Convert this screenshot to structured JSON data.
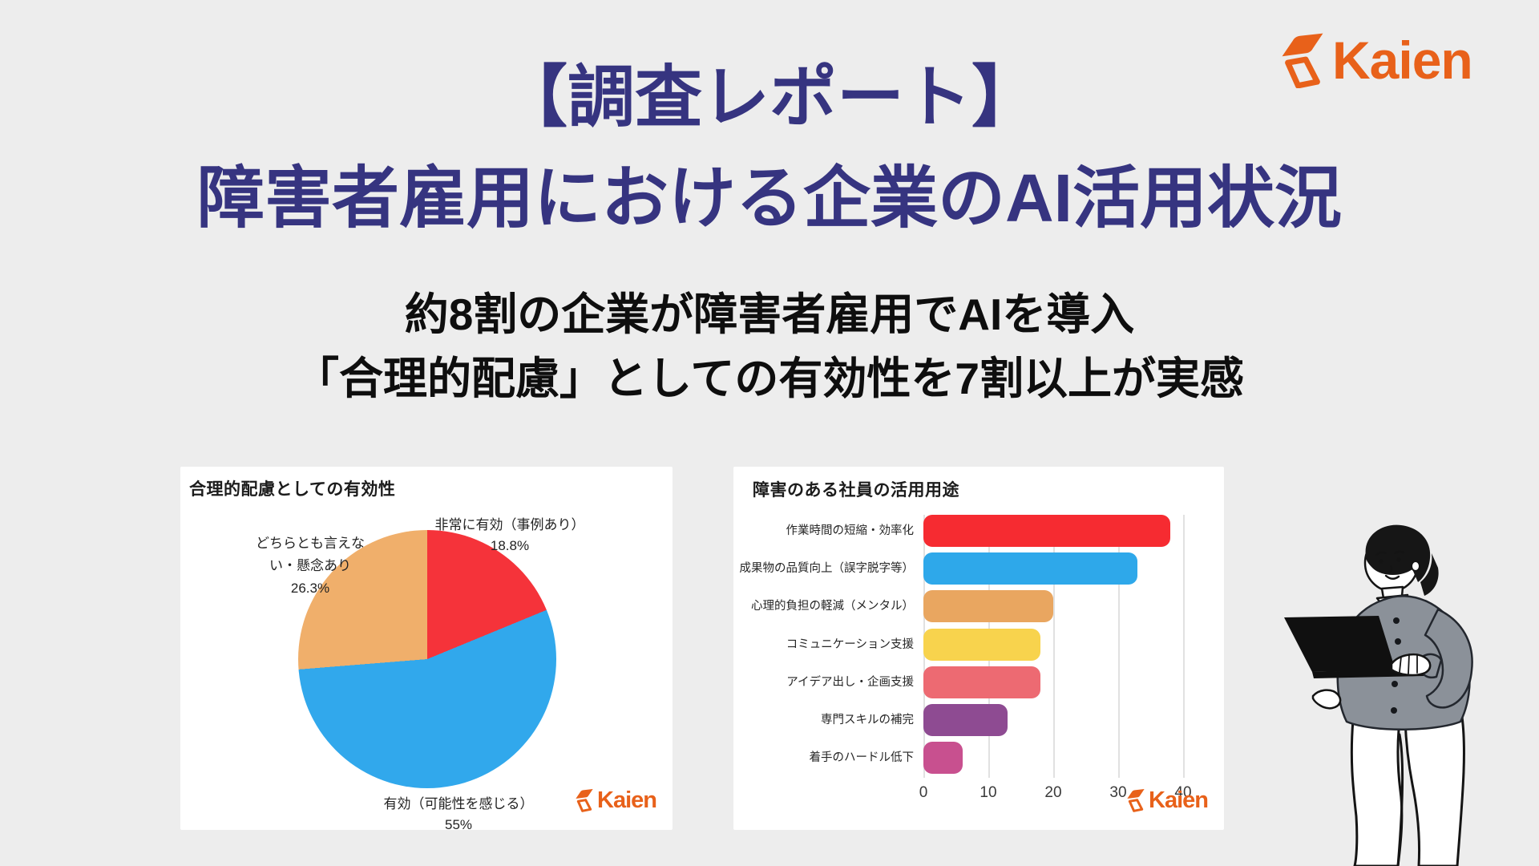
{
  "page": {
    "background": "#ededed"
  },
  "brand": {
    "wordmark": "Kaien",
    "color": "#e8611a"
  },
  "header": {
    "title": {
      "line1": "【調査レポート】",
      "line2": "障害者雇用における企業のAI活用状況",
      "color": "#363480"
    },
    "subtitle": {
      "line1": "約8割の企業が障害者雇用でAIを導入",
      "line2": "「合理的配慮」としての有効性を7割以上が実感"
    }
  },
  "chart_data": [
    {
      "type": "pie",
      "title": "合理的配慮としての有効性",
      "start_angle": "12-oclock",
      "direction": "clockwise",
      "slices": [
        {
          "label": "非常に有効（事例あり）",
          "pct": 18.8,
          "color": "#f5333a"
        },
        {
          "label": "有効（可能性を感じる）",
          "pct": 55.0,
          "color": "#31a8ec"
        },
        {
          "label": "どちらとも言えない・懸念あり",
          "pct": 26.3,
          "color": "#f0af6b"
        }
      ],
      "labels": {
        "top_right": {
          "line1": "非常に有効（事例あり）",
          "line2": "18.8%"
        },
        "left": {
          "line1": "どちらとも言えな",
          "line2": "い・懸念あり",
          "line3": "26.3%"
        },
        "bottom": {
          "line1": "有効（可能性を感じる）",
          "line2": "55%"
        }
      }
    },
    {
      "type": "bar",
      "orientation": "horizontal",
      "title": "障害のある社員の活用用途",
      "categories": [
        "作業時間の短縮・効率化",
        "成果物の品質向上（誤字脱字等）",
        "心理的負担の軽減（メンタル）",
        "コミュニケーション支援",
        "アイデア出し・企画支援",
        "専門スキルの補完",
        "着手のハードル低下"
      ],
      "values": [
        38,
        33,
        20,
        18,
        18,
        13,
        6
      ],
      "colors": [
        "#f62b31",
        "#2ea8ea",
        "#e9a660",
        "#f8d34d",
        "#ed6a72",
        "#8e4b92",
        "#c8508f"
      ],
      "xlim": [
        0,
        40
      ],
      "xticks": [
        0,
        10,
        20,
        30,
        40
      ],
      "grid": true,
      "legend": "none"
    }
  ],
  "illustration": {
    "icon": "person-with-laptop-illustration"
  }
}
